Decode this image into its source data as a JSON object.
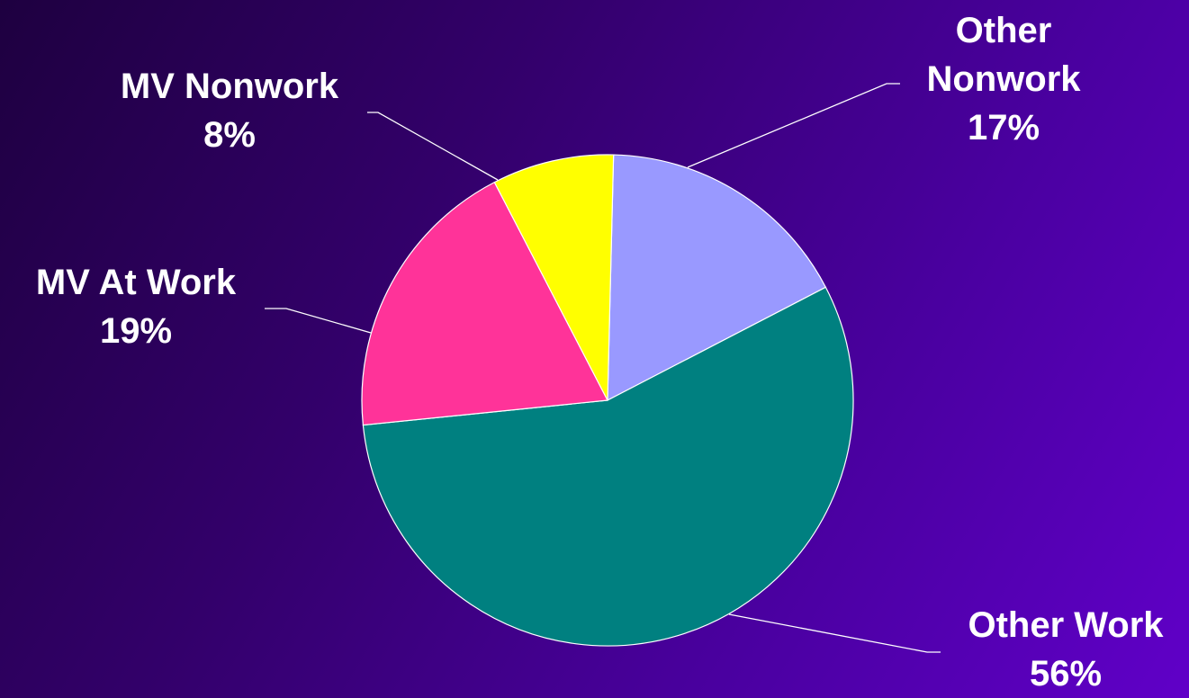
{
  "chart_data": {
    "type": "pie",
    "slices": [
      {
        "label": "Other Nonwork",
        "label_lines": [
          "Other",
          "Nonwork"
        ],
        "value": 17,
        "value_label": "17%",
        "color": "#9999ff"
      },
      {
        "label": "Other Work",
        "label_lines": [
          "Other Work"
        ],
        "value": 56,
        "value_label": "56%",
        "color": "#008080"
      },
      {
        "label": "MV At Work",
        "label_lines": [
          "MV At Work"
        ],
        "value": 19,
        "value_label": "19%",
        "color": "#ff3399"
      },
      {
        "label": "MV Nonwork",
        "label_lines": [
          "MV Nonwork"
        ],
        "value": 8,
        "value_label": "8%",
        "color": "#ffff00"
      }
    ],
    "legend": "none",
    "data_labels": "outside with leader lines"
  }
}
